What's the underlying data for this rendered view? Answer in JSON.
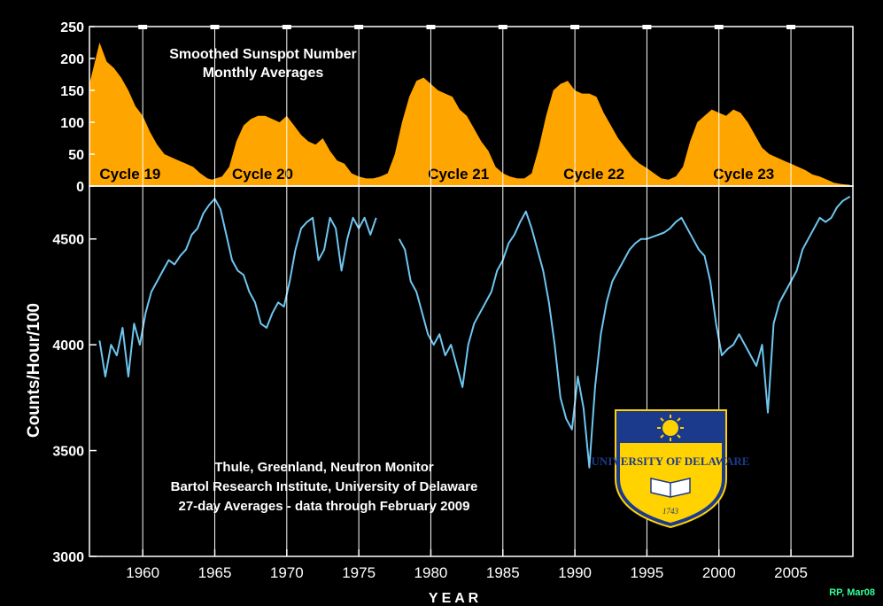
{
  "chart_data": [
    {
      "type": "area",
      "title": "Smoothed Sunspot Number",
      "subtitle": "Monthly Averages",
      "ylim": [
        0,
        250
      ],
      "yticks": [
        0,
        50,
        100,
        150,
        200,
        250
      ],
      "color": "#FFA500",
      "cycle_labels": [
        {
          "label": "Cycle 19",
          "x": 1957.0
        },
        {
          "label": "Cycle 20",
          "x": 1966.2
        },
        {
          "label": "Cycle 21",
          "x": 1979.8
        },
        {
          "label": "Cycle 22",
          "x": 1989.2
        },
        {
          "label": "Cycle 23",
          "x": 1999.6
        }
      ],
      "x": [
        1956.3,
        1957.0,
        1957.5,
        1958.0,
        1958.5,
        1959.0,
        1959.5,
        1960.0,
        1960.5,
        1961.0,
        1961.5,
        1962.0,
        1962.5,
        1963.0,
        1963.5,
        1964.0,
        1964.5,
        1964.8,
        1965.5,
        1966.0,
        1966.5,
        1967.0,
        1967.5,
        1968.0,
        1968.5,
        1969.0,
        1969.5,
        1970.0,
        1970.5,
        1971.0,
        1971.5,
        1972.0,
        1972.5,
        1973.0,
        1973.5,
        1974.0,
        1974.5,
        1975.0,
        1975.5,
        1976.0,
        1976.5,
        1977.0,
        1977.5,
        1978.0,
        1978.5,
        1979.0,
        1979.5,
        1980.0,
        1980.5,
        1981.0,
        1981.5,
        1982.0,
        1982.5,
        1983.0,
        1983.5,
        1984.0,
        1984.5,
        1985.0,
        1985.5,
        1986.0,
        1986.5,
        1987.0,
        1987.5,
        1988.0,
        1988.5,
        1989.0,
        1989.5,
        1990.0,
        1990.5,
        1991.0,
        1991.5,
        1992.0,
        1992.5,
        1993.0,
        1993.5,
        1994.0,
        1994.5,
        1995.0,
        1995.5,
        1996.0,
        1996.5,
        1997.0,
        1997.5,
        1998.0,
        1998.5,
        1999.0,
        1999.5,
        2000.0,
        2000.5,
        2001.0,
        2001.5,
        2002.0,
        2002.5,
        2003.0,
        2003.5,
        2004.0,
        2004.5,
        2005.0,
        2005.5,
        2006.0,
        2006.5,
        2007.0,
        2007.5,
        2008.0,
        2008.5,
        2009.1
      ],
      "y": [
        160,
        225,
        195,
        185,
        170,
        150,
        125,
        110,
        85,
        65,
        50,
        45,
        40,
        35,
        30,
        20,
        12,
        10,
        15,
        30,
        70,
        95,
        105,
        110,
        110,
        105,
        100,
        110,
        95,
        80,
        70,
        65,
        75,
        55,
        40,
        35,
        20,
        15,
        12,
        12,
        15,
        20,
        50,
        100,
        140,
        165,
        170,
        160,
        150,
        145,
        140,
        120,
        110,
        90,
        70,
        55,
        30,
        20,
        15,
        12,
        12,
        20,
        60,
        110,
        150,
        160,
        165,
        150,
        145,
        145,
        140,
        115,
        95,
        75,
        60,
        45,
        35,
        28,
        20,
        12,
        10,
        15,
        30,
        70,
        100,
        110,
        120,
        115,
        110,
        120,
        115,
        100,
        80,
        60,
        50,
        45,
        40,
        35,
        30,
        25,
        18,
        15,
        10,
        5,
        3,
        2
      ]
    },
    {
      "type": "line",
      "title": "Thule, Greenland, Neutron Monitor",
      "subtitle": "Bartol Research Institute, University of Delaware",
      "note": "27-day Averages - data through February 2009",
      "xlabel": "Y E A R",
      "ylabel": "Counts/Hour/100",
      "xlim": [
        1956.3,
        2009.3
      ],
      "ylim": [
        3000,
        4750
      ],
      "yticks": [
        3000,
        3500,
        4000,
        4500
      ],
      "xticks": [
        1960,
        1965,
        1970,
        1975,
        1980,
        1985,
        1990,
        1995,
        2000,
        2005
      ],
      "color": "#6EC6F0",
      "series": [
        {
          "x": [
            1957.0,
            1957.4,
            1957.8,
            1958.2,
            1958.6,
            1959.0,
            1959.4,
            1959.8,
            1960.2,
            1960.6,
            1961.0,
            1961.4,
            1961.8,
            1962.2,
            1962.6,
            1963.0,
            1963.4,
            1963.8,
            1964.2,
            1964.6,
            1965.0,
            1965.4,
            1965.8,
            1966.2,
            1966.6,
            1967.0,
            1967.4,
            1967.8,
            1968.2,
            1968.6,
            1969.0,
            1969.4,
            1969.8,
            1970.2,
            1970.6,
            1971.0,
            1971.4,
            1971.8,
            1972.2,
            1972.6,
            1973.0,
            1973.4,
            1973.8,
            1974.2,
            1974.6,
            1975.0,
            1975.4,
            1975.8,
            1976.2
          ],
          "y": [
            4020,
            3850,
            4000,
            3950,
            4080,
            3850,
            4100,
            4000,
            4150,
            4250,
            4300,
            4350,
            4400,
            4380,
            4420,
            4450,
            4520,
            4550,
            4620,
            4660,
            4690,
            4640,
            4520,
            4400,
            4350,
            4330,
            4250,
            4200,
            4100,
            4080,
            4150,
            4200,
            4180,
            4300,
            4450,
            4550,
            4580,
            4600,
            4400,
            4450,
            4600,
            4550,
            4350,
            4500,
            4600,
            4550,
            4600,
            4520,
            4600
          ]
        },
        {
          "x": [
            1977.8,
            1978.2,
            1978.6,
            1979.0,
            1979.4,
            1979.8,
            1980.2,
            1980.6,
            1981.0,
            1981.4,
            1981.8,
            1982.2,
            1982.6,
            1983.0,
            1983.4,
            1983.8,
            1984.2,
            1984.6,
            1985.0,
            1985.4,
            1985.8,
            1986.2,
            1986.6,
            1987.0,
            1987.4,
            1987.8,
            1988.2,
            1988.6,
            1989.0,
            1989.4,
            1989.8,
            1990.2,
            1990.6,
            1991.0,
            1991.4,
            1991.8,
            1992.2,
            1992.6,
            1993.0,
            1993.4,
            1993.8,
            1994.2,
            1994.6,
            1995.0,
            1995.4,
            1995.8,
            1996.2,
            1996.6,
            1997.0,
            1997.4,
            1997.8,
            1998.2,
            1998.6,
            1999.0,
            1999.4,
            1999.8,
            2000.2,
            2000.6,
            2001.0,
            2001.4,
            2001.8,
            2002.2,
            2002.6,
            2003.0,
            2003.4,
            2003.8,
            2004.2,
            2004.6,
            2005.0,
            2005.4,
            2005.8,
            2006.2,
            2006.6,
            2007.0,
            2007.4,
            2007.8,
            2008.2,
            2008.6,
            2009.1
          ],
          "y": [
            4500,
            4450,
            4300,
            4250,
            4150,
            4050,
            4000,
            4050,
            3950,
            4000,
            3900,
            3800,
            4000,
            4100,
            4150,
            4200,
            4250,
            4350,
            4400,
            4480,
            4520,
            4580,
            4630,
            4550,
            4450,
            4350,
            4200,
            4000,
            3750,
            3650,
            3600,
            3850,
            3700,
            3420,
            3800,
            4050,
            4200,
            4300,
            4350,
            4400,
            4450,
            4480,
            4500,
            4500,
            4510,
            4520,
            4530,
            4550,
            4580,
            4600,
            4550,
            4500,
            4450,
            4420,
            4300,
            4100,
            3950,
            3980,
            4000,
            4050,
            4000,
            3950,
            3900,
            4000,
            3680,
            4100,
            4200,
            4250,
            4300,
            4350,
            4450,
            4500,
            4550,
            4600,
            4580,
            4600,
            4650,
            4680,
            4700
          ]
        }
      ]
    }
  ],
  "logo": {
    "text": "UNIVERSITY OF DELAWARE",
    "year": "1743",
    "shield_color": "#1B3A8C",
    "gold": "#FFD200"
  },
  "credit": "RP, Mar08"
}
